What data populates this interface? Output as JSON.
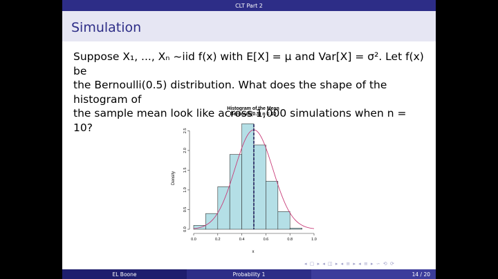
{
  "header": {
    "title": "CLT Part 2"
  },
  "frame": {
    "title": "Simulation"
  },
  "body": {
    "line1": "Suppose X₁, ..., Xₙ ~iid f(x) with E[X] = μ and Var[X] = σ². Let f(x) be",
    "line2": "the Bernoulli(0.5) distribution. What does the shape of the histogram of",
    "line3": "the sample mean look like across 1,000 simulations when n = 10?"
  },
  "chart_data": {
    "type": "bar",
    "title": "Histogram of the Mean",
    "subtitle": "Bernoulli(0.5) n = 10",
    "xlabel": "x",
    "ylabel": "Density",
    "xlim": [
      0,
      1
    ],
    "ylim": [
      0,
      2.7
    ],
    "xticks": [
      "0.0",
      "0.2",
      "0.4",
      "0.6",
      "0.8",
      "1.0"
    ],
    "yticks": [
      "0.0",
      "0.5",
      "1.0",
      "1.5",
      "2.0",
      "2.5"
    ],
    "bins": [
      {
        "x0": 0.0,
        "x1": 0.1,
        "density": 0.1
      },
      {
        "x0": 0.1,
        "x1": 0.2,
        "density": 0.4
      },
      {
        "x0": 0.2,
        "x1": 0.3,
        "density": 1.08
      },
      {
        "x0": 0.3,
        "x1": 0.4,
        "density": 1.9
      },
      {
        "x0": 0.4,
        "x1": 0.5,
        "density": 2.68
      },
      {
        "x0": 0.5,
        "x1": 0.6,
        "density": 2.14
      },
      {
        "x0": 0.6,
        "x1": 0.7,
        "density": 1.22
      },
      {
        "x0": 0.7,
        "x1": 0.8,
        "density": 0.45
      },
      {
        "x0": 0.8,
        "x1": 0.9,
        "density": 0.03
      },
      {
        "x0": 0.9,
        "x1": 1.0,
        "density": 0.0
      }
    ],
    "mean_line_x": 0.5,
    "normal_curve": {
      "mean": 0.5,
      "sd": 0.158
    },
    "colors": {
      "bar_fill": "#b4dfe6",
      "curve": "#c83c78",
      "mean_line": "#1e1e5a"
    }
  },
  "footer": {
    "author": "EL Boone",
    "course": "Probability 1",
    "page": "14 / 20"
  },
  "colors": {
    "primary": "#2d2d87",
    "title_bg": "#e6e6f3",
    "footer_left": "#1e1e6e",
    "footer_mid": "#2d2d87",
    "footer_right": "#3c3c9b"
  }
}
